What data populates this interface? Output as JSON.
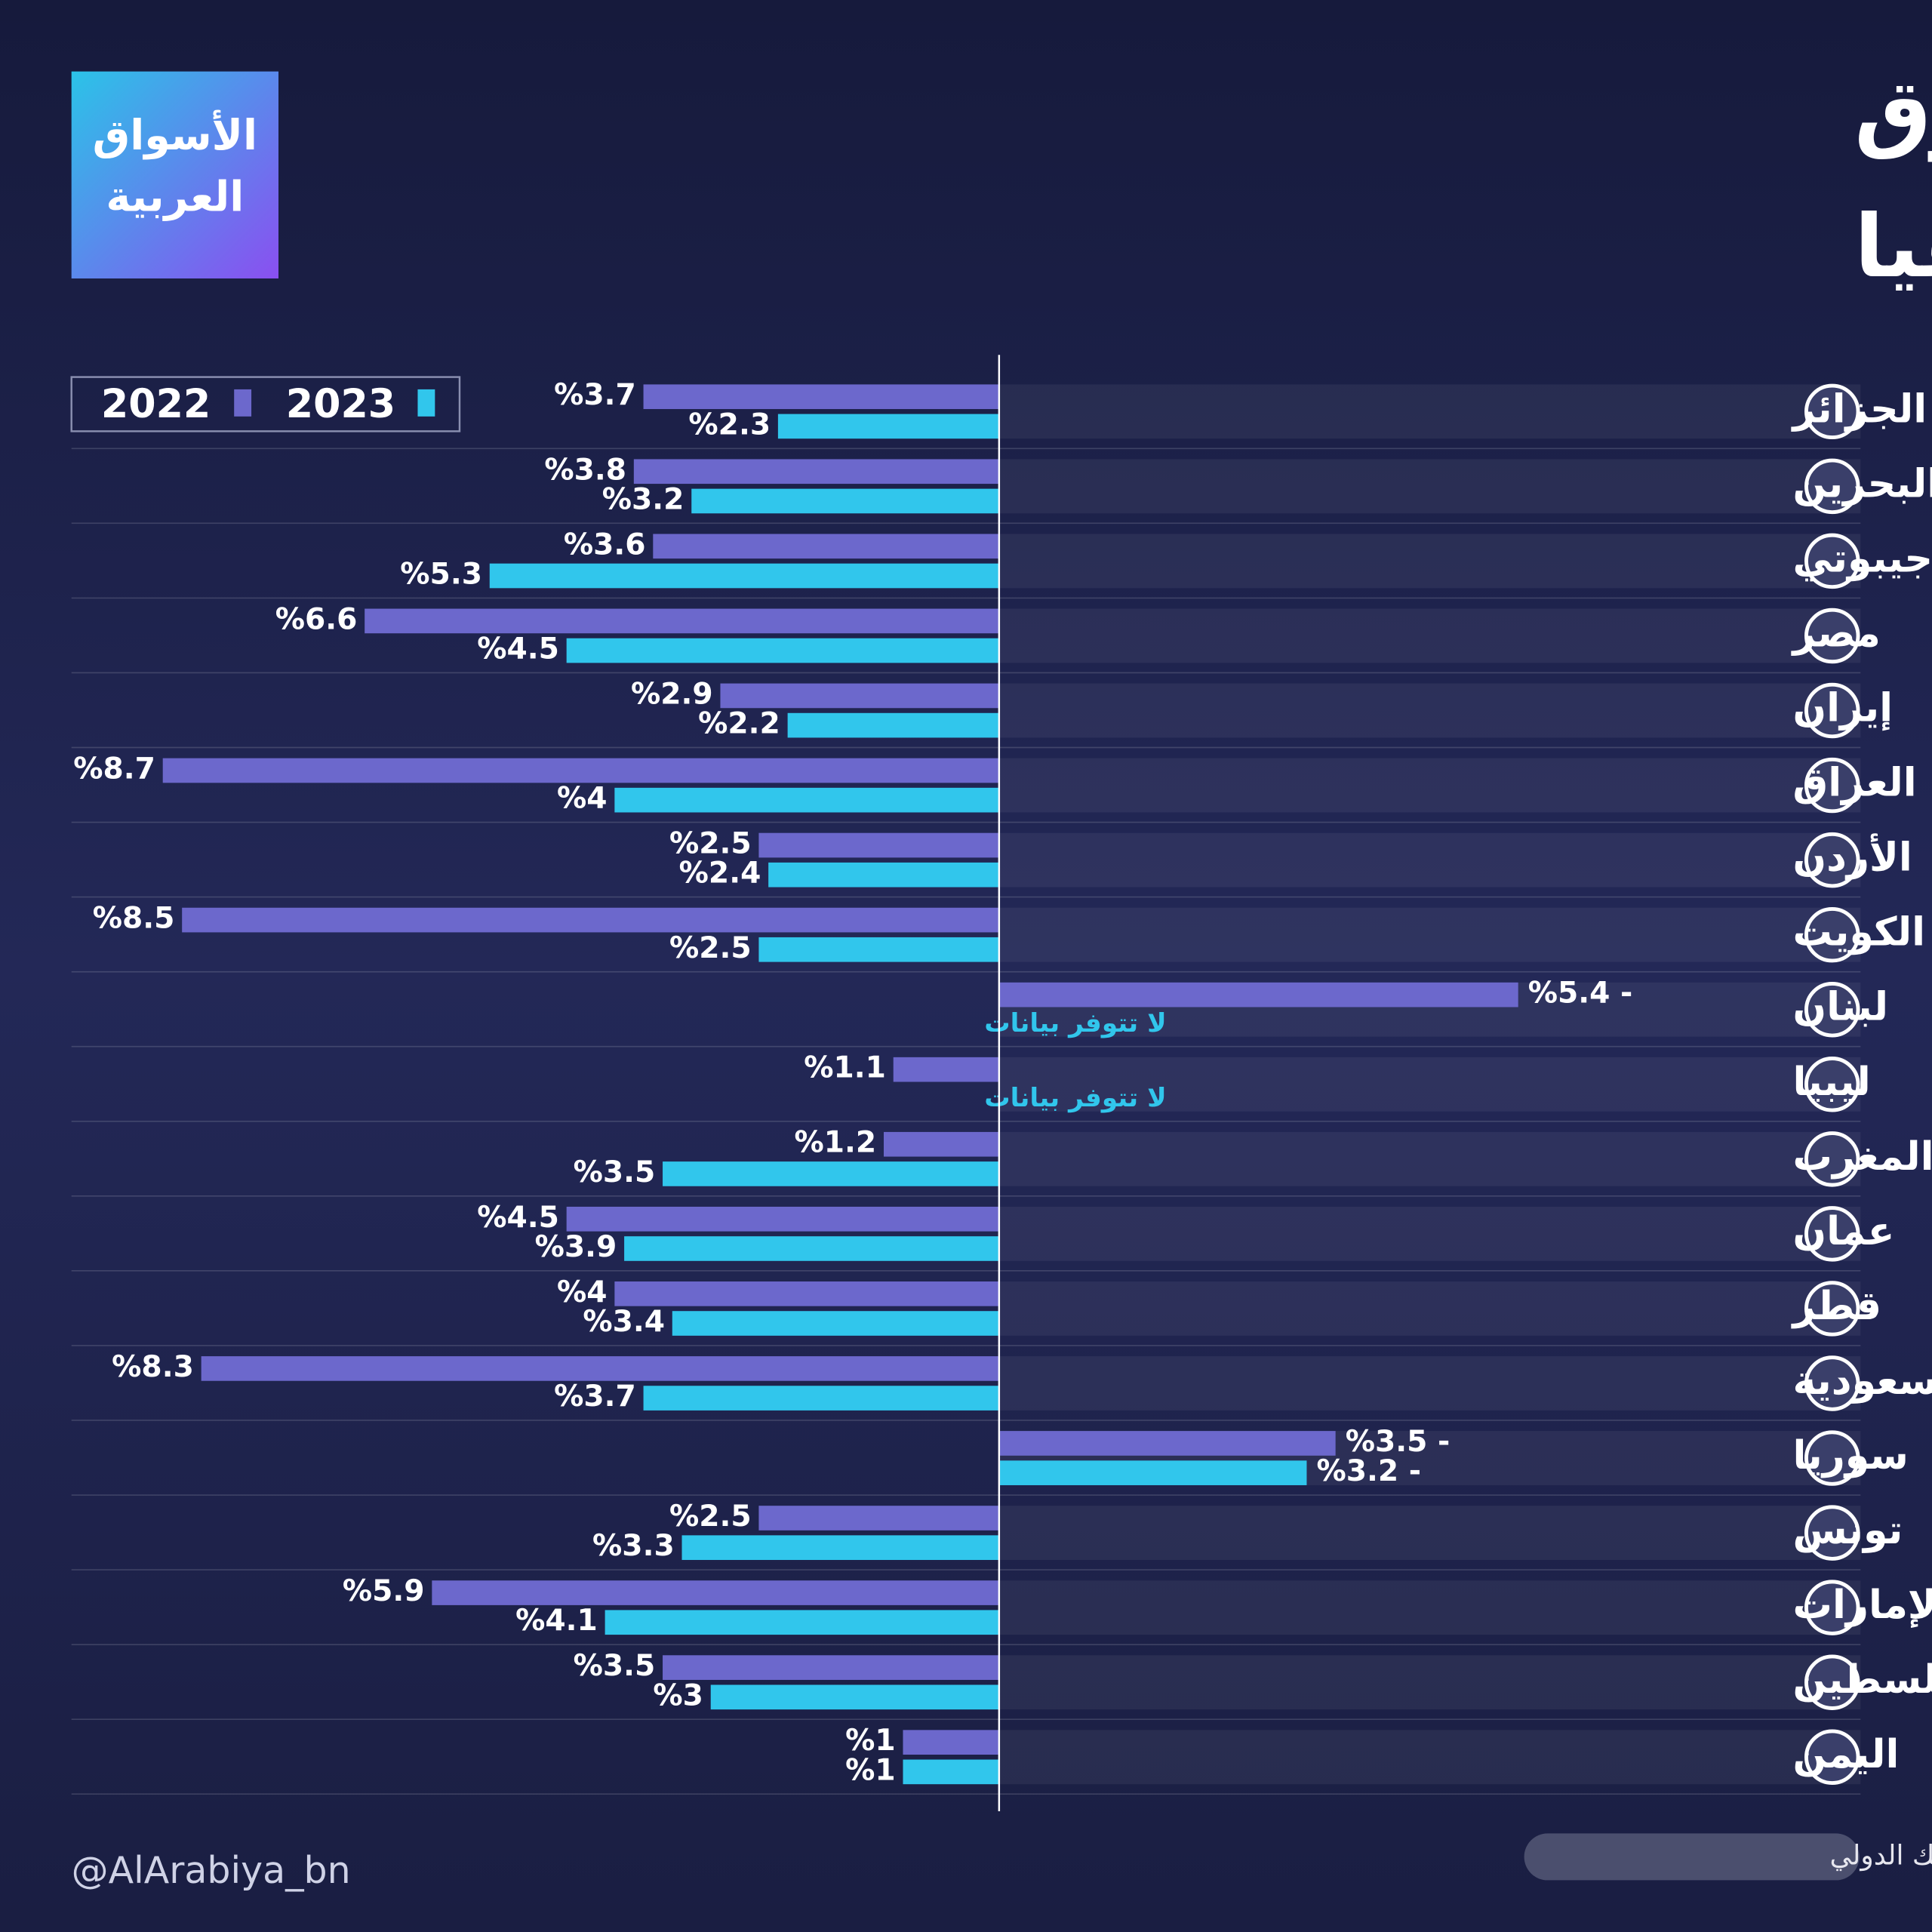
{
  "chart_data": {
    "type": "bar",
    "orientation": "horizontal",
    "title": [
      "تنبؤات نمو اقتصادات الشرق",
      "الأوسط وشمال إفريقيا"
    ],
    "logo": [
      "الأسواق",
      "العربية"
    ],
    "handle": "@AlArabiya_bn",
    "source": "المصدر: البنك الدولي",
    "categories": [
      "الجزائر",
      "البحرين",
      "جيبوتي",
      "مصر",
      "إيران",
      "العراق",
      "الأردن",
      "الكويت",
      "لبنان",
      "ليبيا",
      "المغرب",
      "عمان",
      "قطر",
      "السعودية",
      "سوريا",
      "تونس",
      "الإمارات",
      "فلسطين",
      "اليمن"
    ],
    "xlim": [
      9.65,
      -8.5
    ],
    "series": [
      {
        "name": "2022",
        "color": "#6c68cc",
        "values": [
          3.7,
          3.8,
          3.6,
          6.6,
          2.9,
          8.7,
          2.5,
          8.5,
          -5.4,
          1.1,
          1.2,
          4.5,
          4,
          8.3,
          -3.5,
          2.5,
          5.9,
          3.5,
          1
        ],
        "value_labels": [
          "%3.7",
          "%3.8",
          "%3.6",
          "%6.6",
          "%2.9",
          "%8.7",
          "%2.5",
          "%8.5",
          "%5.4 -",
          "%1.1",
          "%1.2",
          "%4.5",
          "%4",
          "%8.3",
          "%3.5 -",
          "%2.5",
          "%5.9",
          "%3.5",
          "%1"
        ]
      },
      {
        "name": "2023",
        "color": "#31c6ec",
        "values": [
          2.3,
          3.2,
          5.3,
          4.5,
          2.2,
          4,
          2.4,
          2.5,
          null,
          null,
          3.5,
          3.9,
          3.4,
          3.7,
          -3.2,
          3.3,
          4.1,
          3,
          1
        ],
        "value_labels": [
          "%2.3",
          "%3.2",
          "%5.3",
          "%4.5",
          "%2.2",
          "%4",
          "%2.4",
          "%2.5",
          "لا تتوفر بيانات",
          "لا تتوفر بيانات",
          "%3.5",
          "%3.9",
          "%3.4",
          "%3.7",
          "%3.2 -",
          "%3.3",
          "%4.1",
          "%3",
          "%1"
        ]
      }
    ],
    "legend": "top-left"
  }
}
